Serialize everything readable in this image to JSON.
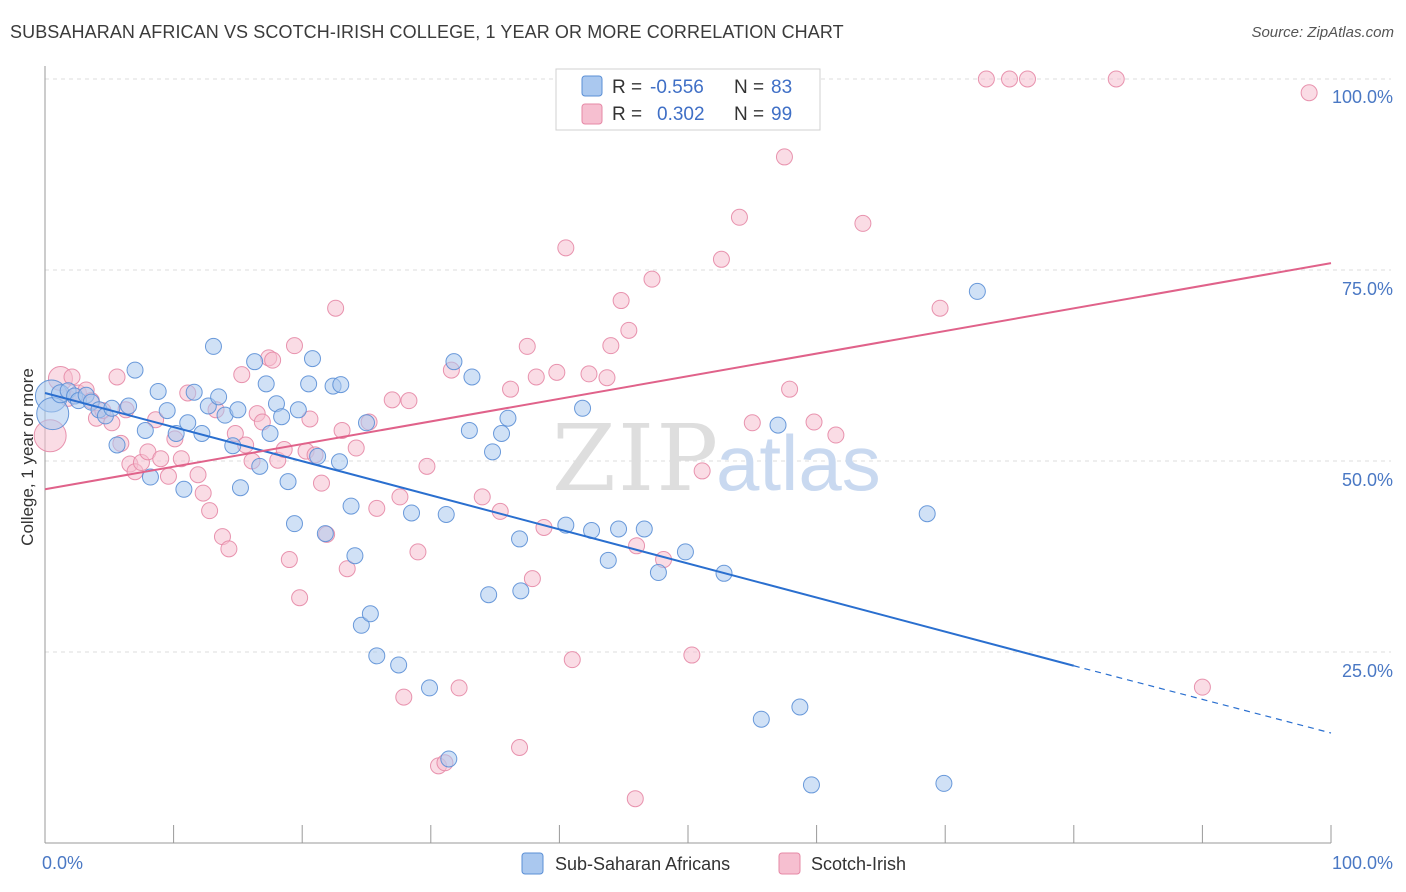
{
  "title": "SUBSAHARAN AFRICAN VS SCOTCH-IRISH COLLEGE, 1 YEAR OR MORE CORRELATION CHART",
  "source": "Source: ZipAtlas.com",
  "watermark": {
    "zip": "ZIP",
    "atlas": "atlas"
  },
  "colors": {
    "blue_fill": "#aac8ef",
    "blue_stroke": "#5b8fd6",
    "blue_line": "#2a6fcf",
    "pink_fill": "#f6bfd0",
    "pink_stroke": "#e688a6",
    "pink_line": "#e0628a",
    "grid": "#dddddd",
    "tick_text": "#4a78c4"
  },
  "legend": {
    "rows": [
      {
        "r_label": "R =",
        "r_value": "-0.556",
        "n_label": "N =",
        "n_value": "83"
      },
      {
        "r_label": "R =",
        "r_value": "0.302",
        "n_label": "N =",
        "n_value": "99"
      }
    ]
  },
  "bottom_legend": [
    "Sub-Saharan Africans",
    "Scotch-Irish"
  ],
  "chart_data": {
    "type": "scatter",
    "title": "SUBSAHARAN AFRICAN VS SCOTCH-IRISH COLLEGE, 1 YEAR OR MORE CORRELATION CHART",
    "xlabel": "",
    "ylabel": "College, 1 year or more",
    "xlim": [
      0,
      100
    ],
    "ylim": [
      0,
      100
    ],
    "x_tick_labels": [
      "0.0%",
      "100.0%"
    ],
    "y_tick_labels": [
      "25.0%",
      "50.0%",
      "75.0%",
      "100.0%"
    ],
    "y_ticks": [
      25,
      50,
      75,
      100
    ],
    "grid": true,
    "legend_position": "top-center",
    "series": [
      {
        "name": "Sub-Saharan Africans",
        "r": -0.556,
        "n": 83,
        "trend": {
          "x0": 0,
          "y0": 58.9,
          "x1": 80,
          "y1": 23.2,
          "dash_to_x": 100,
          "dash_to_y": 14.4
        },
        "points": [
          [
            0.5,
            58.5,
            16
          ],
          [
            0.6,
            56.2,
            16
          ],
          [
            1.2,
            58.8,
            9
          ],
          [
            1.8,
            59.2,
            8
          ],
          [
            2.3,
            58.5,
            8
          ],
          [
            2.6,
            57.9,
            8
          ],
          [
            3.2,
            58.6,
            8
          ],
          [
            3.6,
            57.7,
            8
          ],
          [
            4.2,
            56.7,
            8
          ],
          [
            4.7,
            55.9,
            8
          ],
          [
            5.2,
            56.9,
            8
          ],
          [
            5.6,
            52.1,
            8
          ],
          [
            6.5,
            57.2,
            8
          ],
          [
            7.0,
            61.9,
            8
          ],
          [
            7.8,
            54.0,
            8
          ],
          [
            8.2,
            47.9,
            8
          ],
          [
            8.8,
            59.1,
            8
          ],
          [
            9.5,
            56.6,
            8
          ],
          [
            10.2,
            53.6,
            8
          ],
          [
            10.8,
            46.3,
            8
          ],
          [
            11.1,
            55.0,
            8
          ],
          [
            11.6,
            59.0,
            8
          ],
          [
            12.2,
            53.6,
            8
          ],
          [
            12.7,
            57.2,
            8
          ],
          [
            13.1,
            65.0,
            8
          ],
          [
            13.5,
            58.4,
            8
          ],
          [
            14.0,
            56.0,
            8
          ],
          [
            14.6,
            52.0,
            8
          ],
          [
            15.0,
            56.7,
            8
          ],
          [
            15.2,
            46.5,
            8
          ],
          [
            16.3,
            63.0,
            8
          ],
          [
            16.7,
            49.3,
            8
          ],
          [
            17.2,
            60.1,
            8
          ],
          [
            17.5,
            53.6,
            8
          ],
          [
            18.0,
            57.5,
            8
          ],
          [
            18.4,
            55.8,
            8
          ],
          [
            18.9,
            47.3,
            8
          ],
          [
            19.4,
            41.8,
            8
          ],
          [
            19.7,
            56.7,
            8
          ],
          [
            20.5,
            60.1,
            8
          ],
          [
            20.8,
            63.4,
            8
          ],
          [
            21.2,
            50.6,
            8
          ],
          [
            21.8,
            40.5,
            8
          ],
          [
            22.4,
            59.8,
            8
          ],
          [
            22.9,
            49.9,
            8
          ],
          [
            23.0,
            60.0,
            8
          ],
          [
            23.8,
            44.1,
            8
          ],
          [
            24.1,
            37.6,
            8
          ],
          [
            24.6,
            28.5,
            8
          ],
          [
            25.0,
            55.0,
            8
          ],
          [
            25.3,
            30.0,
            8
          ],
          [
            25.8,
            24.5,
            8
          ],
          [
            27.5,
            23.3,
            8
          ],
          [
            28.5,
            43.2,
            8
          ],
          [
            29.9,
            20.3,
            8
          ],
          [
            31.2,
            43.0,
            8
          ],
          [
            31.4,
            11.0,
            8
          ],
          [
            31.8,
            63.0,
            8
          ],
          [
            33.0,
            54.0,
            8
          ],
          [
            33.2,
            61.0,
            8
          ],
          [
            34.5,
            32.5,
            8
          ],
          [
            34.8,
            51.2,
            8
          ],
          [
            35.5,
            53.6,
            8
          ],
          [
            36.0,
            55.6,
            8
          ],
          [
            36.9,
            39.8,
            8
          ],
          [
            37.0,
            33.0,
            8
          ],
          [
            40.5,
            41.6,
            8
          ],
          [
            41.8,
            56.9,
            8
          ],
          [
            42.5,
            40.9,
            8
          ],
          [
            43.8,
            37.0,
            8
          ],
          [
            44.6,
            41.1,
            8
          ],
          [
            46.6,
            41.1,
            8
          ],
          [
            47.7,
            35.4,
            8
          ],
          [
            49.8,
            38.1,
            8
          ],
          [
            52.8,
            35.3,
            8
          ],
          [
            55.7,
            16.2,
            8
          ],
          [
            57.0,
            54.7,
            8
          ],
          [
            58.7,
            17.8,
            8
          ],
          [
            59.6,
            7.6,
            8
          ],
          [
            68.6,
            43.1,
            8
          ],
          [
            69.9,
            7.8,
            8
          ],
          [
            72.5,
            72.2,
            8
          ]
        ]
      },
      {
        "name": "Scotch-Irish",
        "r": 0.302,
        "n": 99,
        "trend": {
          "x0": 0,
          "y0": 46.3,
          "x1": 100,
          "y1": 75.9
        },
        "points": [
          [
            0.4,
            53.3,
            16
          ],
          [
            1.2,
            60.8,
            12
          ],
          [
            1.8,
            58.2,
            8
          ],
          [
            2.1,
            61.0,
            8
          ],
          [
            2.6,
            58.9,
            8
          ],
          [
            3.2,
            59.3,
            8
          ],
          [
            3.6,
            57.9,
            8
          ],
          [
            4.0,
            55.6,
            8
          ],
          [
            4.5,
            56.6,
            8
          ],
          [
            5.2,
            55.0,
            8
          ],
          [
            5.6,
            61.0,
            8
          ],
          [
            5.9,
            52.3,
            8
          ],
          [
            6.3,
            56.7,
            8
          ],
          [
            6.6,
            49.6,
            8
          ],
          [
            7.0,
            48.6,
            8
          ],
          [
            7.5,
            49.8,
            8
          ],
          [
            8.0,
            51.2,
            8
          ],
          [
            8.6,
            55.4,
            8
          ],
          [
            9.0,
            50.3,
            8
          ],
          [
            9.6,
            48.0,
            8
          ],
          [
            10.1,
            52.9,
            8
          ],
          [
            10.6,
            50.3,
            8
          ],
          [
            11.1,
            58.9,
            8
          ],
          [
            11.9,
            48.2,
            8
          ],
          [
            12.3,
            45.8,
            8
          ],
          [
            12.8,
            43.5,
            8
          ],
          [
            13.3,
            56.7,
            8
          ],
          [
            13.8,
            40.1,
            8
          ],
          [
            14.3,
            38.5,
            8
          ],
          [
            14.8,
            53.6,
            8
          ],
          [
            15.3,
            61.3,
            8
          ],
          [
            15.6,
            52.1,
            8
          ],
          [
            16.1,
            50.0,
            8
          ],
          [
            16.5,
            56.2,
            8
          ],
          [
            16.9,
            55.1,
            8
          ],
          [
            17.4,
            63.5,
            8
          ],
          [
            17.7,
            63.2,
            8
          ],
          [
            18.1,
            50.1,
            8
          ],
          [
            18.6,
            51.5,
            8
          ],
          [
            19.0,
            37.1,
            8
          ],
          [
            19.4,
            65.1,
            8
          ],
          [
            19.8,
            32.1,
            8
          ],
          [
            20.3,
            51.3,
            8
          ],
          [
            20.6,
            55.5,
            8
          ],
          [
            21.0,
            50.8,
            8
          ],
          [
            21.5,
            47.1,
            8
          ],
          [
            21.9,
            40.4,
            8
          ],
          [
            22.6,
            70.0,
            8
          ],
          [
            23.1,
            54.0,
            8
          ],
          [
            23.5,
            35.9,
            8
          ],
          [
            24.2,
            51.7,
            8
          ],
          [
            25.2,
            55.1,
            8
          ],
          [
            25.8,
            43.8,
            8
          ],
          [
            27.0,
            58.0,
            8
          ],
          [
            27.6,
            45.3,
            8
          ],
          [
            27.9,
            19.1,
            8
          ],
          [
            28.3,
            57.9,
            8
          ],
          [
            29.0,
            38.1,
            8
          ],
          [
            29.7,
            49.3,
            8
          ],
          [
            30.6,
            10.1,
            8
          ],
          [
            31.1,
            10.5,
            8
          ],
          [
            31.6,
            61.9,
            8
          ],
          [
            32.2,
            20.3,
            8
          ],
          [
            34.0,
            45.3,
            8
          ],
          [
            35.4,
            43.4,
            8
          ],
          [
            36.2,
            59.4,
            8
          ],
          [
            36.9,
            12.5,
            8
          ],
          [
            37.5,
            65.0,
            8
          ],
          [
            37.9,
            34.6,
            8
          ],
          [
            38.2,
            61.0,
            8
          ],
          [
            38.8,
            41.3,
            8
          ],
          [
            39.8,
            61.6,
            8
          ],
          [
            40.5,
            77.9,
            8
          ],
          [
            41.0,
            24.0,
            8
          ],
          [
            42.3,
            61.4,
            8
          ],
          [
            43.7,
            60.9,
            8
          ],
          [
            44.0,
            65.1,
            8
          ],
          [
            44.8,
            71.0,
            8
          ],
          [
            45.4,
            67.1,
            8
          ],
          [
            45.9,
            5.8,
            8
          ],
          [
            46.0,
            38.9,
            8
          ],
          [
            47.2,
            73.8,
            8
          ],
          [
            48.1,
            37.1,
            8
          ],
          [
            48.7,
            100.0,
            8
          ],
          [
            50.3,
            24.6,
            8
          ],
          [
            51.1,
            48.7,
            8
          ],
          [
            52.6,
            76.4,
            8
          ],
          [
            54.0,
            81.9,
            8
          ],
          [
            55.0,
            55.0,
            8
          ],
          [
            57.5,
            89.8,
            8
          ],
          [
            57.9,
            59.4,
            8
          ],
          [
            59.8,
            55.1,
            8
          ],
          [
            61.5,
            53.4,
            8
          ],
          [
            63.6,
            81.1,
            8
          ],
          [
            69.6,
            70.0,
            8
          ],
          [
            73.2,
            100.0,
            8
          ],
          [
            75.0,
            100.0,
            8
          ],
          [
            76.4,
            100.0,
            8
          ],
          [
            83.3,
            100.0,
            8
          ],
          [
            90.0,
            20.4,
            8
          ],
          [
            98.3,
            98.2,
            8
          ]
        ]
      }
    ]
  }
}
